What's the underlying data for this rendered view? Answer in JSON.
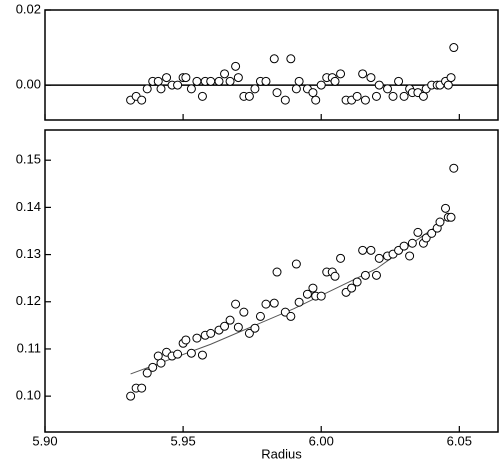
{
  "chart_data": [
    {
      "type": "scatter",
      "xlim": [
        5.9,
        6.064
      ],
      "xticks": [
        5.9,
        5.95,
        6.0,
        6.05
      ],
      "ylim": [
        -0.0093,
        0.02
      ],
      "yticks": [
        {
          "value": 0,
          "label": "0.00"
        },
        {
          "value": 0.02,
          "label": "0.02"
        }
      ],
      "x": [
        5.931,
        5.933,
        5.935,
        5.937,
        5.939,
        5.941,
        5.942,
        5.944,
        5.946,
        5.948,
        5.95,
        5.951,
        5.953,
        5.955,
        5.957,
        5.958,
        5.96,
        5.963,
        5.965,
        5.967,
        5.969,
        5.97,
        5.972,
        5.974,
        5.976,
        5.978,
        5.98,
        5.983,
        5.984,
        5.987,
        5.989,
        5.991,
        5.992,
        5.995,
        5.997,
        5.998,
        6.0,
        6.002,
        6.004,
        6.005,
        6.007,
        6.009,
        6.011,
        6.013,
        6.015,
        6.016,
        6.018,
        6.02,
        6.021,
        6.024,
        6.026,
        6.028,
        6.03,
        6.032,
        6.033,
        6.035,
        6.037,
        6.038,
        6.04,
        6.042,
        6.043,
        6.045,
        6.046,
        6.047,
        6.048
      ],
      "values": [
        -0.004,
        -0.003,
        -0.004,
        -0.001,
        0.001,
        0.001,
        -0.001,
        0.002,
        0.0,
        0.0,
        0.002,
        0.002,
        -0.001,
        0.001,
        -0.003,
        0.001,
        0.001,
        0.001,
        0.003,
        0.001,
        0.005,
        0.002,
        -0.003,
        -0.003,
        -0.001,
        0.001,
        0.001,
        0.007,
        -0.002,
        -0.004,
        0.007,
        -0.001,
        0.001,
        -0.001,
        -0.002,
        -0.004,
        0.0,
        0.002,
        0.002,
        0.001,
        0.003,
        -0.004,
        -0.004,
        -0.003,
        0.003,
        -0.004,
        0.002,
        -0.003,
        0.0,
        -0.001,
        -0.003,
        0.001,
        -0.003,
        -0.001,
        -0.002,
        -0.002,
        -0.003,
        -0.001,
        0.0,
        0.0,
        0.0,
        0.001,
        0.0,
        0.002,
        0.01
      ]
    },
    {
      "type": "scatter",
      "xlabel": "Radius",
      "xlim": [
        5.9,
        6.064
      ],
      "xticks": [
        {
          "value": 5.9,
          "label": "5.90"
        },
        {
          "value": 5.95,
          "label": "5.95"
        },
        {
          "value": 6.0,
          "label": "6.00"
        },
        {
          "value": 6.05,
          "label": "6.05"
        }
      ],
      "ylim": [
        0.0924,
        0.1564
      ],
      "yticks": [
        {
          "value": 0.1,
          "label": "0.10"
        },
        {
          "value": 0.11,
          "label": "0.11"
        },
        {
          "value": 0.12,
          "label": "0.12"
        },
        {
          "value": 0.13,
          "label": "0.13"
        },
        {
          "value": 0.14,
          "label": "0.14"
        },
        {
          "value": 0.15,
          "label": "0.15"
        }
      ],
      "x": [
        5.931,
        5.933,
        5.935,
        5.937,
        5.939,
        5.941,
        5.942,
        5.944,
        5.946,
        5.948,
        5.95,
        5.951,
        5.953,
        5.955,
        5.957,
        5.958,
        5.96,
        5.963,
        5.965,
        5.967,
        5.969,
        5.97,
        5.972,
        5.974,
        5.976,
        5.978,
        5.98,
        5.983,
        5.984,
        5.987,
        5.989,
        5.991,
        5.992,
        5.995,
        5.997,
        5.998,
        6.0,
        6.002,
        6.004,
        6.005,
        6.007,
        6.009,
        6.011,
        6.013,
        6.015,
        6.016,
        6.018,
        6.02,
        6.021,
        6.024,
        6.026,
        6.028,
        6.03,
        6.032,
        6.033,
        6.035,
        6.037,
        6.038,
        6.04,
        6.042,
        6.043,
        6.045,
        6.046,
        6.047,
        6.048
      ],
      "values": [
        0.1,
        0.1017,
        0.1017,
        0.1049,
        0.1061,
        0.1085,
        0.107,
        0.1093,
        0.1085,
        0.1089,
        0.1112,
        0.1119,
        0.1091,
        0.1123,
        0.1087,
        0.1129,
        0.1133,
        0.114,
        0.1148,
        0.1161,
        0.1195,
        0.1146,
        0.1178,
        0.1133,
        0.1144,
        0.1169,
        0.1195,
        0.1197,
        0.1263,
        0.1178,
        0.1169,
        0.128,
        0.1199,
        0.1216,
        0.1229,
        0.1212,
        0.1212,
        0.1263,
        0.1263,
        0.1254,
        0.1292,
        0.122,
        0.1229,
        0.1242,
        0.1309,
        0.1256,
        0.1309,
        0.1256,
        0.1292,
        0.1297,
        0.1301,
        0.1309,
        0.1318,
        0.1297,
        0.1324,
        0.1347,
        0.1324,
        0.1335,
        0.1345,
        0.1356,
        0.1369,
        0.1398,
        0.1379,
        0.1379,
        0.1483
      ],
      "fit_x": [
        5.931,
        5.96,
        5.99,
        6.02,
        6.046
      ],
      "fit_values": [
        0.1047,
        0.111,
        0.1185,
        0.127,
        0.1378
      ]
    }
  ]
}
